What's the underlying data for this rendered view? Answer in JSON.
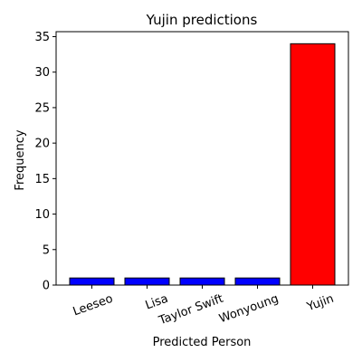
{
  "chart_data": {
    "type": "bar",
    "title": "Yujin predictions",
    "xlabel": "Predicted Person",
    "ylabel": "Frequency",
    "categories": [
      "Leeseo",
      "Lisa",
      "Taylor Swift",
      "Wonyoung",
      "Yujin"
    ],
    "values": [
      1,
      1,
      1,
      1,
      34
    ],
    "bar_colors": [
      "#0000ff",
      "#0000ff",
      "#0000ff",
      "#0000ff",
      "#ff0000"
    ],
    "edge_color": "#000000",
    "ylim": [
      0,
      35.7
    ],
    "yticks": [
      0,
      5,
      10,
      15,
      20,
      25,
      30,
      35
    ],
    "xtick_rotation_deg": 20,
    "grid": false,
    "legend": false
  }
}
